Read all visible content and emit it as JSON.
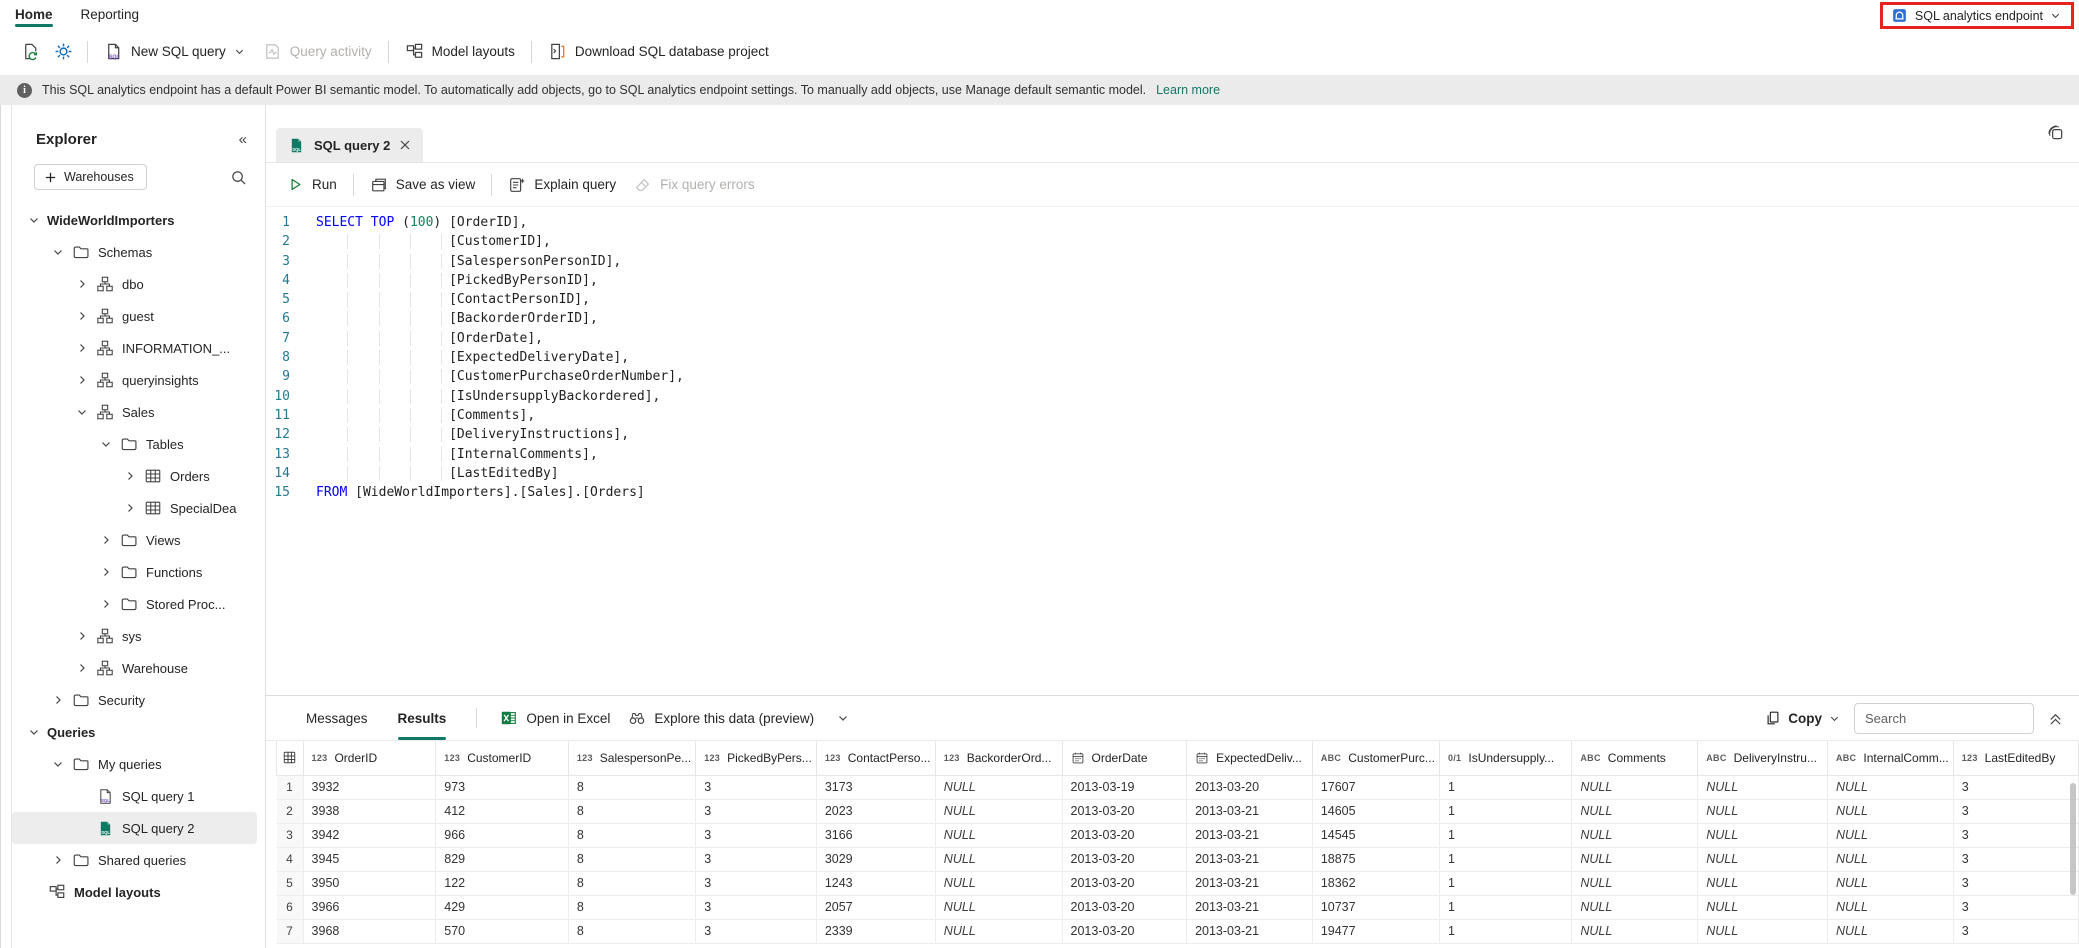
{
  "colors": {
    "accent_teal": "#117865",
    "annotation_red": "#e8231d",
    "sql_keyword": "#0000ff",
    "sql_number": "#098658",
    "line_number": "#237893"
  },
  "menu": {
    "tabs": [
      {
        "label": "Home"
      },
      {
        "label": "Reporting"
      }
    ],
    "endpoint": {
      "label": "SQL analytics endpoint"
    }
  },
  "toolbar": {
    "new_sql_query": "New SQL query",
    "query_activity": "Query activity",
    "model_layouts": "Model layouts",
    "download_project": "Download SQL database project"
  },
  "banner": {
    "text": "This SQL analytics endpoint has a default Power BI semantic model. To automatically add objects, go to SQL analytics endpoint settings. To manually add objects, use Manage default semantic model.",
    "link": "Learn more"
  },
  "explorer": {
    "title": "Explorer",
    "warehouses_button": "Warehouses",
    "tree": [
      {
        "label": "WideWorldImporters",
        "level": 0,
        "chevron": "down",
        "icon": null,
        "bold": true
      },
      {
        "label": "Schemas",
        "level": 1,
        "chevron": "down",
        "icon": "folder"
      },
      {
        "label": "dbo",
        "level": 2,
        "chevron": "right",
        "icon": "schema"
      },
      {
        "label": "guest",
        "level": 2,
        "chevron": "right",
        "icon": "schema"
      },
      {
        "label": "INFORMATION_...",
        "level": 2,
        "chevron": "right",
        "icon": "schema"
      },
      {
        "label": "queryinsights",
        "level": 2,
        "chevron": "right",
        "icon": "schema"
      },
      {
        "label": "Sales",
        "level": 2,
        "chevron": "down",
        "icon": "schema"
      },
      {
        "label": "Tables",
        "level": 3,
        "chevron": "down",
        "icon": "folder"
      },
      {
        "label": "Orders",
        "level": 4,
        "chevron": "right",
        "icon": "table"
      },
      {
        "label": "SpecialDea",
        "level": 4,
        "chevron": "right",
        "icon": "table"
      },
      {
        "label": "Views",
        "level": 3,
        "chevron": "right",
        "icon": "folder"
      },
      {
        "label": "Functions",
        "level": 3,
        "chevron": "right",
        "icon": "folder"
      },
      {
        "label": "Stored Proc...",
        "level": 3,
        "chevron": "right",
        "icon": "folder"
      },
      {
        "label": "sys",
        "level": 2,
        "chevron": "right",
        "icon": "schema"
      },
      {
        "label": "Warehouse",
        "level": 2,
        "chevron": "right",
        "icon": "schema"
      },
      {
        "label": "Security",
        "level": 1,
        "chevron": "right",
        "icon": "folder"
      },
      {
        "label": "Queries",
        "level": 0,
        "chevron": "down",
        "icon": null,
        "bold": true
      },
      {
        "label": "My queries",
        "level": 1,
        "chevron": "down",
        "icon": "folder"
      },
      {
        "label": "SQL query 1",
        "level": 2,
        "chevron": "none",
        "icon": "sqldoc"
      },
      {
        "label": "SQL query 2",
        "level": 2,
        "chevron": "none",
        "icon": "sqldocGreen",
        "selected": true
      },
      {
        "label": "Shared queries",
        "level": 1,
        "chevron": "right",
        "icon": "folder"
      },
      {
        "label": "Model layouts",
        "level": 0,
        "chevron": "none",
        "icon": "model",
        "bold": true
      }
    ]
  },
  "editor": {
    "tab": "SQL query 2",
    "toolbar": {
      "run": "Run",
      "save_as_view": "Save as view",
      "explain_query": "Explain query",
      "fix_query_errors": "Fix query errors"
    },
    "lines": [
      [
        [
          "SELECT",
          "k"
        ],
        [
          " ",
          "p"
        ],
        [
          "TOP",
          "k"
        ],
        [
          " (",
          "p"
        ],
        [
          "100",
          "n"
        ],
        [
          ") [OrderID],",
          "p"
        ]
      ],
      [
        [
          "                 [CustomerID],",
          "p"
        ]
      ],
      [
        [
          "                 [SalespersonPersonID],",
          "p"
        ]
      ],
      [
        [
          "                 [PickedByPersonID],",
          "p"
        ]
      ],
      [
        [
          "                 [ContactPersonID],",
          "p"
        ]
      ],
      [
        [
          "                 [BackorderOrderID],",
          "p"
        ]
      ],
      [
        [
          "                 [OrderDate],",
          "p"
        ]
      ],
      [
        [
          "                 [ExpectedDeliveryDate],",
          "p"
        ]
      ],
      [
        [
          "                 [CustomerPurchaseOrderNumber],",
          "p"
        ]
      ],
      [
        [
          "                 [IsUndersupplyBackordered],",
          "p"
        ]
      ],
      [
        [
          "                 [Comments],",
          "p"
        ]
      ],
      [
        [
          "                 [DeliveryInstructions],",
          "p"
        ]
      ],
      [
        [
          "                 [InternalComments],",
          "p"
        ]
      ],
      [
        [
          "                 [LastEditedBy]",
          "p"
        ]
      ],
      [
        [
          "FROM",
          "k"
        ],
        [
          " [WideWorldImporters].[Sales].[Orders]",
          "p"
        ]
      ]
    ]
  },
  "results": {
    "tabs": {
      "messages": "Messages",
      "results": "Results"
    },
    "open_in_excel": "Open in Excel",
    "explore": "Explore this data (preview)",
    "copy": "Copy",
    "search_placeholder": "Search",
    "grid": {
      "columns": [
        {
          "type": "rowselector",
          "label": ""
        },
        {
          "type": "int",
          "label": "OrderID"
        },
        {
          "type": "int",
          "label": "CustomerID"
        },
        {
          "type": "int",
          "label": "SalespersonPe..."
        },
        {
          "type": "int",
          "label": "PickedByPers..."
        },
        {
          "type": "int",
          "label": "ContactPerso..."
        },
        {
          "type": "int",
          "label": "BackorderOrd..."
        },
        {
          "type": "date",
          "label": "OrderDate"
        },
        {
          "type": "date",
          "label": "ExpectedDeliv..."
        },
        {
          "type": "text",
          "label": "CustomerPurc..."
        },
        {
          "type": "bit",
          "label": "IsUndersupply..."
        },
        {
          "type": "text",
          "label": "Comments"
        },
        {
          "type": "text",
          "label": "DeliveryInstru..."
        },
        {
          "type": "text",
          "label": "InternalComm..."
        },
        {
          "type": "int",
          "label": "LastEditedBy"
        }
      ],
      "rows": [
        [
          "3932",
          "973",
          "8",
          "3",
          "3173",
          "NULL",
          "2013-03-19",
          "2013-03-20",
          "17607",
          "1",
          "NULL",
          "NULL",
          "NULL",
          "3"
        ],
        [
          "3938",
          "412",
          "8",
          "3",
          "2023",
          "NULL",
          "2013-03-20",
          "2013-03-21",
          "14605",
          "1",
          "NULL",
          "NULL",
          "NULL",
          "3"
        ],
        [
          "3942",
          "966",
          "8",
          "3",
          "3166",
          "NULL",
          "2013-03-20",
          "2013-03-21",
          "14545",
          "1",
          "NULL",
          "NULL",
          "NULL",
          "3"
        ],
        [
          "3945",
          "829",
          "8",
          "3",
          "3029",
          "NULL",
          "2013-03-20",
          "2013-03-21",
          "18875",
          "1",
          "NULL",
          "NULL",
          "NULL",
          "3"
        ],
        [
          "3950",
          "122",
          "8",
          "3",
          "1243",
          "NULL",
          "2013-03-20",
          "2013-03-21",
          "18362",
          "1",
          "NULL",
          "NULL",
          "NULL",
          "3"
        ],
        [
          "3966",
          "429",
          "8",
          "3",
          "2057",
          "NULL",
          "2013-03-20",
          "2013-03-21",
          "10737",
          "1",
          "NULL",
          "NULL",
          "NULL",
          "3"
        ],
        [
          "3968",
          "570",
          "8",
          "3",
          "2339",
          "NULL",
          "2013-03-20",
          "2013-03-21",
          "19477",
          "1",
          "NULL",
          "NULL",
          "NULL",
          "3"
        ]
      ]
    }
  }
}
